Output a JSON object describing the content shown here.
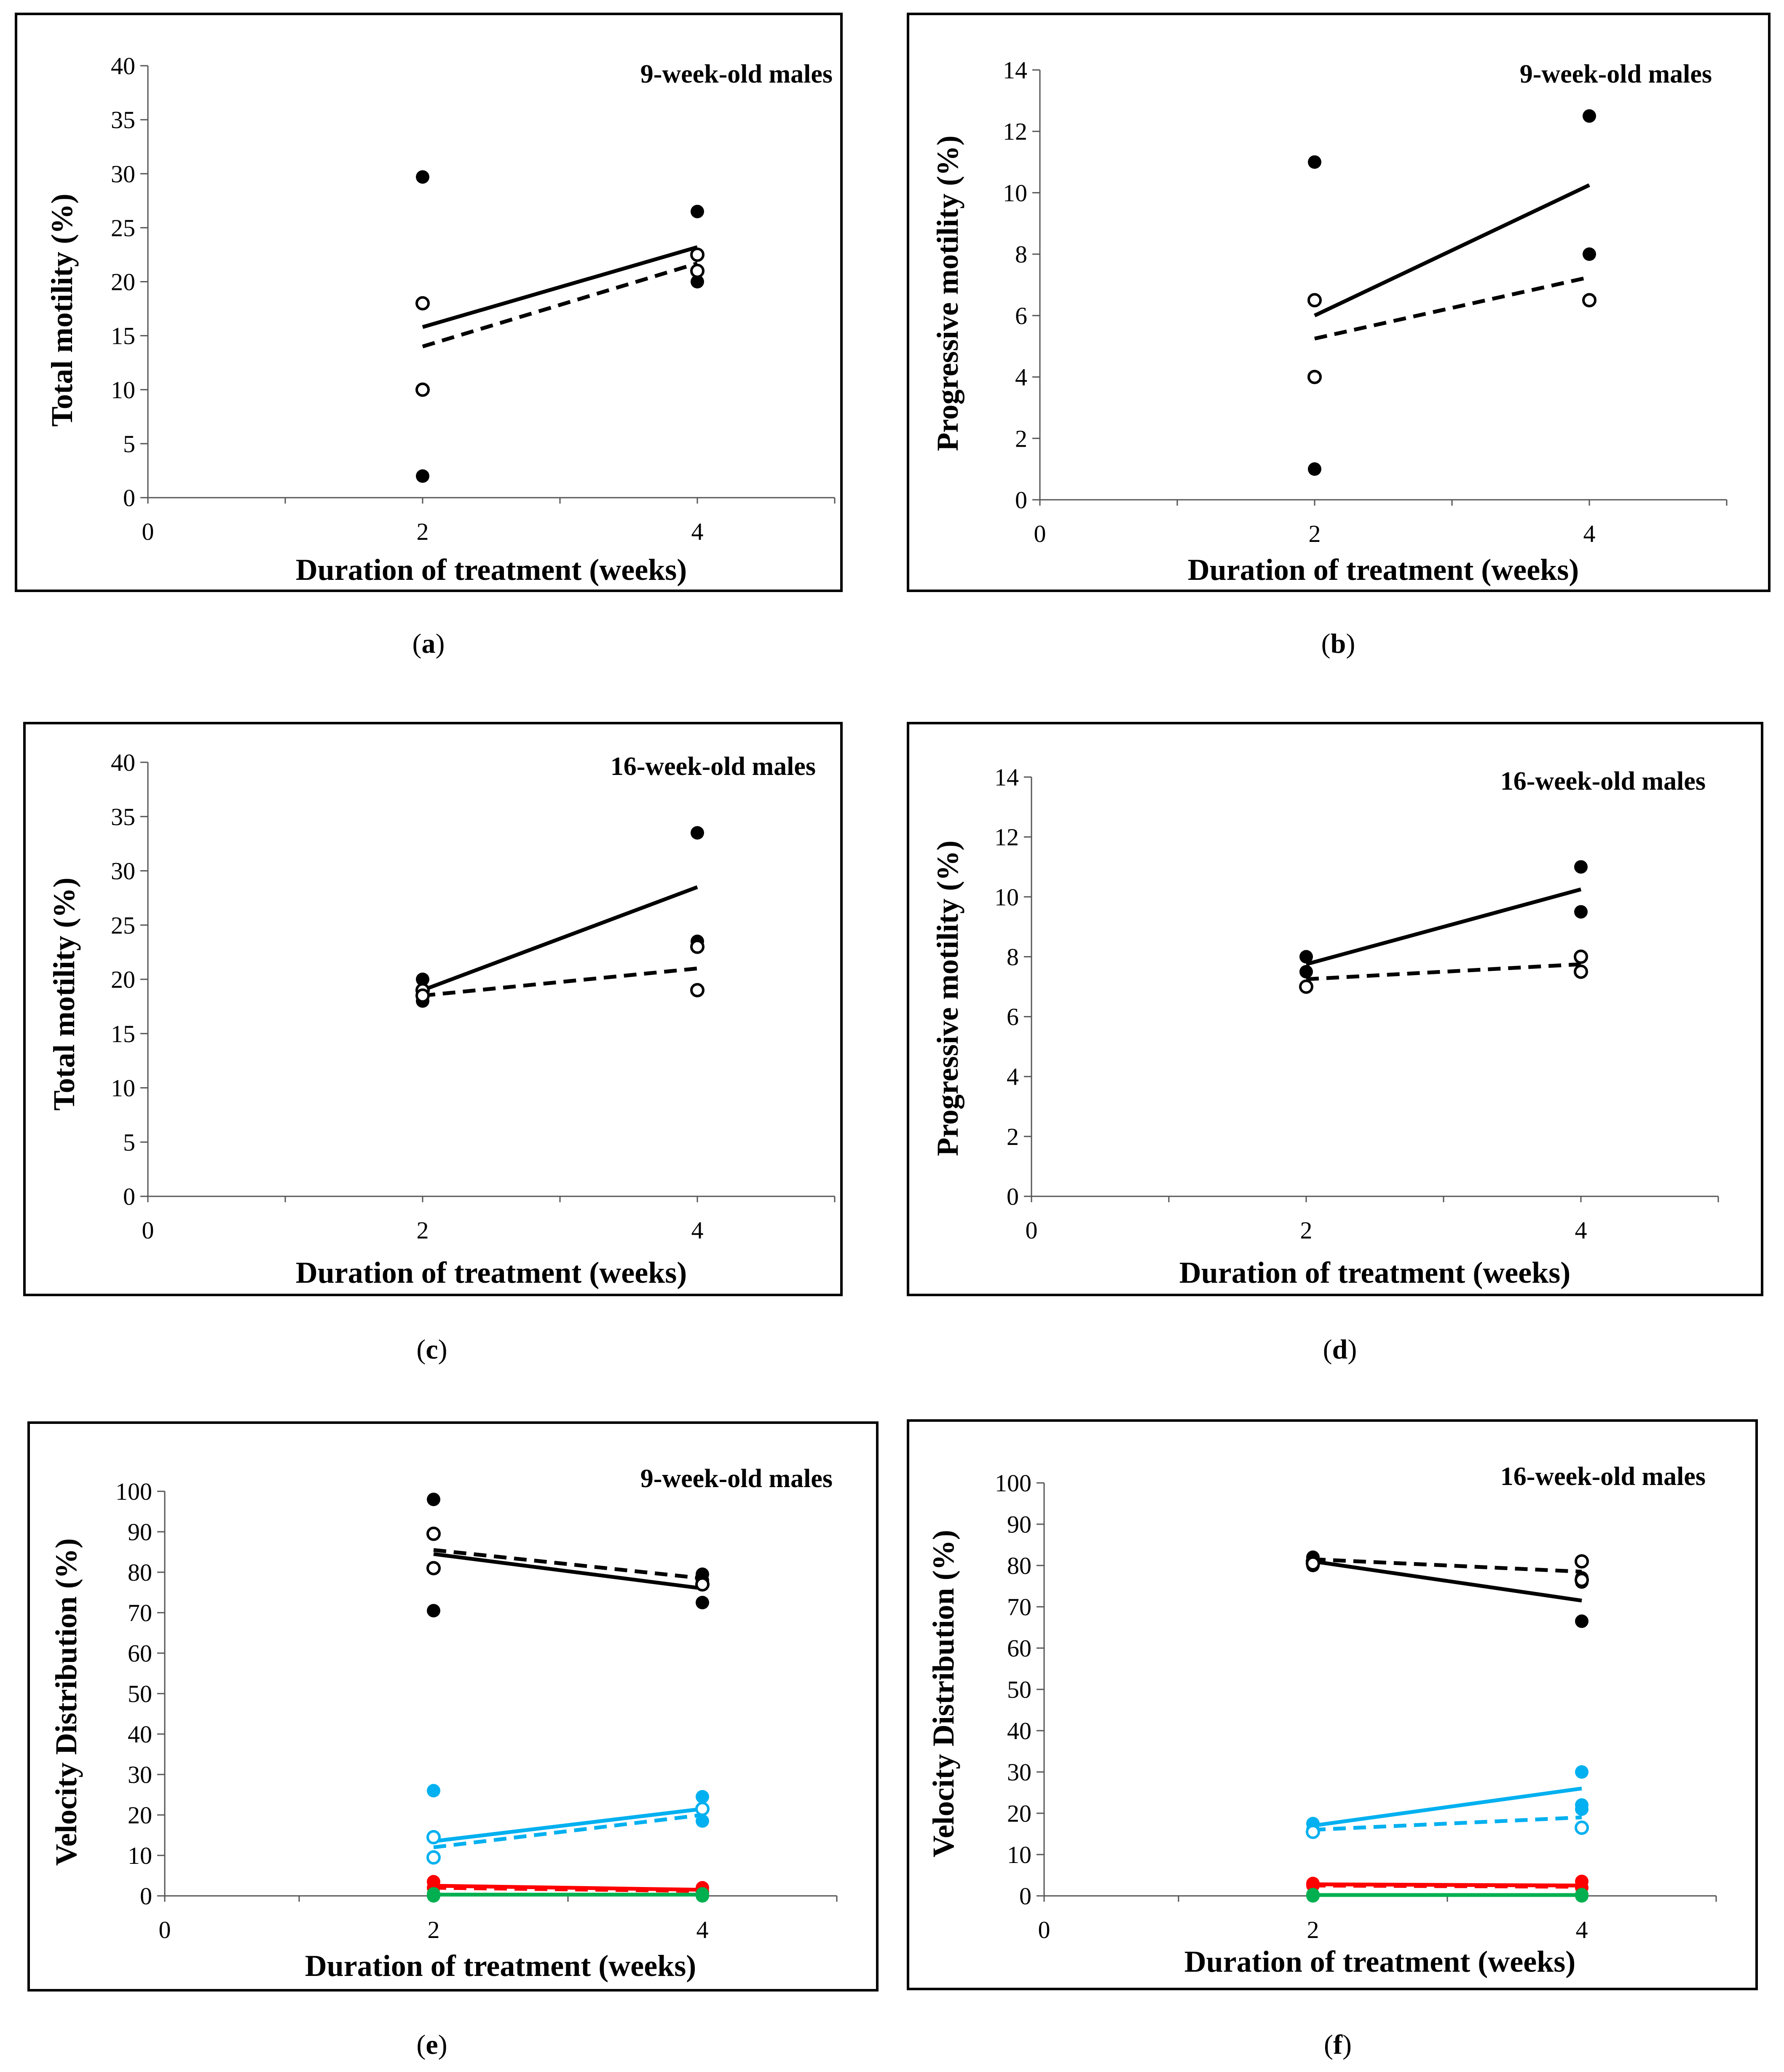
{
  "chart_data": [
    {
      "id": "a",
      "type": "scatter",
      "title": "9-week-old males",
      "xlabel": "Duration of treatment (weeks)",
      "ylabel": "Total motility (%)",
      "xlim": [
        0,
        5
      ],
      "xticks": [
        0,
        2,
        4
      ],
      "ylim": [
        0,
        40
      ],
      "yticks": [
        0,
        5,
        10,
        15,
        20,
        25,
        30,
        35,
        40
      ],
      "series": [
        {
          "name": "filled",
          "color": "#000000",
          "filled": true,
          "x": [
            2,
            2,
            4,
            4
          ],
          "y": [
            29.7,
            2,
            26.5,
            20
          ]
        },
        {
          "name": "open",
          "color": "#000000",
          "filled": false,
          "x": [
            2,
            2,
            4,
            4
          ],
          "y": [
            18,
            10,
            22.5,
            21
          ]
        }
      ],
      "lines": [
        {
          "name": "filled-mean",
          "color": "#000000",
          "dashed": false,
          "x": [
            2,
            4
          ],
          "y": [
            15.8,
            23.2
          ]
        },
        {
          "name": "open-mean",
          "color": "#000000",
          "dashed": true,
          "x": [
            2,
            4
          ],
          "y": [
            14,
            21.7
          ]
        }
      ],
      "caption_label": "a"
    },
    {
      "id": "b",
      "type": "scatter",
      "title": "9-week-old males",
      "xlabel": "Duration of treatment (weeks)",
      "ylabel": "Progressive motility (%)",
      "xlim": [
        0,
        5
      ],
      "xticks": [
        0,
        2,
        4
      ],
      "ylim": [
        0,
        14
      ],
      "yticks": [
        0,
        2,
        4,
        6,
        8,
        10,
        12,
        14
      ],
      "series": [
        {
          "name": "filled",
          "color": "#000000",
          "filled": true,
          "x": [
            2,
            2,
            4,
            4
          ],
          "y": [
            11,
            1,
            12.5,
            8
          ]
        },
        {
          "name": "open",
          "color": "#000000",
          "filled": false,
          "x": [
            2,
            2,
            4
          ],
          "y": [
            6.5,
            4,
            6.5
          ]
        }
      ],
      "lines": [
        {
          "name": "filled-mean",
          "color": "#000000",
          "dashed": false,
          "x": [
            2,
            4
          ],
          "y": [
            6,
            10.25
          ]
        },
        {
          "name": "open-mean",
          "color": "#000000",
          "dashed": true,
          "x": [
            2,
            4
          ],
          "y": [
            5.25,
            7.25
          ]
        }
      ],
      "caption_label": "b"
    },
    {
      "id": "c",
      "type": "scatter",
      "title": "16-week-old males",
      "xlabel": "Duration of treatment (weeks)",
      "ylabel": "Total motility (%)",
      "xlim": [
        0,
        5
      ],
      "xticks": [
        0,
        2,
        4
      ],
      "ylim": [
        0,
        40
      ],
      "yticks": [
        0,
        5,
        10,
        15,
        20,
        25,
        30,
        35,
        40
      ],
      "series": [
        {
          "name": "filled",
          "color": "#000000",
          "filled": true,
          "x": [
            2,
            2,
            4,
            4
          ],
          "y": [
            20,
            18,
            33.5,
            23.5
          ]
        },
        {
          "name": "open",
          "color": "#000000",
          "filled": false,
          "x": [
            2,
            2,
            4,
            4
          ],
          "y": [
            19,
            18.5,
            23,
            19
          ]
        }
      ],
      "lines": [
        {
          "name": "filled-mean",
          "color": "#000000",
          "dashed": false,
          "x": [
            2,
            4
          ],
          "y": [
            19,
            28.5
          ]
        },
        {
          "name": "open-mean",
          "color": "#000000",
          "dashed": true,
          "x": [
            2,
            4
          ],
          "y": [
            18.5,
            21
          ]
        }
      ],
      "caption_label": "c"
    },
    {
      "id": "d",
      "type": "scatter",
      "title": "16-week-old males",
      "xlabel": "Duration of treatment (weeks)",
      "ylabel": "Progressive motility (%)",
      "xlim": [
        0,
        5
      ],
      "xticks": [
        0,
        2,
        4
      ],
      "ylim": [
        0,
        14
      ],
      "yticks": [
        0,
        2,
        4,
        6,
        8,
        10,
        12,
        14
      ],
      "series": [
        {
          "name": "filled",
          "color": "#000000",
          "filled": true,
          "x": [
            2,
            2,
            4,
            4
          ],
          "y": [
            8,
            7.5,
            11,
            9.5
          ]
        },
        {
          "name": "open",
          "color": "#000000",
          "filled": false,
          "x": [
            2,
            4,
            4
          ],
          "y": [
            7,
            8,
            7.5
          ]
        }
      ],
      "lines": [
        {
          "name": "filled-mean",
          "color": "#000000",
          "dashed": false,
          "x": [
            2,
            4
          ],
          "y": [
            7.75,
            10.25
          ]
        },
        {
          "name": "open-mean",
          "color": "#000000",
          "dashed": true,
          "x": [
            2,
            4
          ],
          "y": [
            7.25,
            7.75
          ]
        }
      ],
      "caption_label": "d"
    },
    {
      "id": "e",
      "type": "scatter",
      "title": "9-week-old males",
      "xlabel": "Duration of treatment (weeks)",
      "ylabel": "Velocity Distribution (%)",
      "xlim": [
        0,
        5
      ],
      "xticks": [
        0,
        2,
        4
      ],
      "ylim": [
        0,
        100
      ],
      "yticks": [
        0,
        10,
        20,
        30,
        40,
        50,
        60,
        70,
        80,
        90,
        100
      ],
      "series": [
        {
          "name": "black-filled",
          "color": "#000000",
          "filled": true,
          "x": [
            2,
            2,
            4,
            4,
            4
          ],
          "y": [
            98,
            70.5,
            79.5,
            78,
            72.5
          ]
        },
        {
          "name": "black-open",
          "color": "#000000",
          "filled": false,
          "x": [
            2,
            2,
            4
          ],
          "y": [
            89.5,
            81,
            77
          ]
        },
        {
          "name": "blue-filled",
          "color": "#00b0f0",
          "filled": true,
          "x": [
            2,
            4,
            4
          ],
          "y": [
            26,
            24.5,
            18.5
          ]
        },
        {
          "name": "blue-open",
          "color": "#00b0f0",
          "filled": false,
          "x": [
            2,
            2,
            4
          ],
          "y": [
            14.5,
            9.5,
            21.5
          ]
        },
        {
          "name": "red-filled",
          "color": "#ff0000",
          "filled": true,
          "x": [
            2,
            2,
            4,
            4
          ],
          "y": [
            3.5,
            2,
            2,
            1
          ]
        },
        {
          "name": "green-filled",
          "color": "#00b050",
          "filled": true,
          "x": [
            2,
            2,
            4,
            4
          ],
          "y": [
            0.5,
            0,
            0.5,
            0
          ]
        }
      ],
      "lines": [
        {
          "name": "black-solid",
          "color": "#000000",
          "dashed": false,
          "x": [
            2,
            4
          ],
          "y": [
            84.5,
            76
          ]
        },
        {
          "name": "black-dashed",
          "color": "#000000",
          "dashed": true,
          "x": [
            2,
            4
          ],
          "y": [
            85.5,
            78.5
          ]
        },
        {
          "name": "blue-solid",
          "color": "#00b0f0",
          "dashed": false,
          "x": [
            2,
            4
          ],
          "y": [
            13.5,
            21.5
          ]
        },
        {
          "name": "blue-dashed",
          "color": "#00b0f0",
          "dashed": true,
          "x": [
            2,
            4
          ],
          "y": [
            12,
            20
          ]
        },
        {
          "name": "red-solid",
          "color": "#ff0000",
          "dashed": false,
          "x": [
            2,
            4
          ],
          "y": [
            2.5,
            1.5
          ]
        },
        {
          "name": "red-dashed",
          "color": "#ff0000",
          "dashed": true,
          "x": [
            2,
            4
          ],
          "y": [
            2,
            1.2
          ]
        },
        {
          "name": "green-solid",
          "color": "#00b050",
          "dashed": false,
          "x": [
            2,
            4
          ],
          "y": [
            0.3,
            0.3
          ]
        }
      ],
      "caption_label": "e"
    },
    {
      "id": "f",
      "type": "scatter",
      "title": "16-week-old males",
      "xlabel": "Duration of treatment (weeks)",
      "ylabel": "Velocity Distribution (%)",
      "xlim": [
        0,
        5
      ],
      "xticks": [
        0,
        2,
        4
      ],
      "ylim": [
        0,
        100
      ],
      "yticks": [
        0,
        10,
        20,
        30,
        40,
        50,
        60,
        70,
        80,
        90,
        100
      ],
      "series": [
        {
          "name": "black-filled",
          "color": "#000000",
          "filled": true,
          "x": [
            2,
            2,
            4,
            4,
            4
          ],
          "y": [
            82,
            80,
            77,
            76,
            66.5
          ]
        },
        {
          "name": "black-open",
          "color": "#000000",
          "filled": false,
          "x": [
            2,
            2,
            4,
            4
          ],
          "y": [
            81,
            80.5,
            81,
            76.5
          ]
        },
        {
          "name": "blue-filled",
          "color": "#00b0f0",
          "filled": true,
          "x": [
            2,
            2,
            4,
            4,
            4
          ],
          "y": [
            17.5,
            16,
            30,
            22,
            21
          ]
        },
        {
          "name": "blue-open",
          "color": "#00b0f0",
          "filled": false,
          "x": [
            2,
            4
          ],
          "y": [
            15.5,
            16.5
          ]
        },
        {
          "name": "red-filled",
          "color": "#ff0000",
          "filled": true,
          "x": [
            2,
            2,
            4,
            4
          ],
          "y": [
            3,
            2.5,
            3.5,
            2
          ]
        },
        {
          "name": "green-filled",
          "color": "#00b050",
          "filled": true,
          "x": [
            2,
            2,
            4,
            4
          ],
          "y": [
            0.3,
            0,
            0.3,
            0
          ]
        }
      ],
      "lines": [
        {
          "name": "black-solid",
          "color": "#000000",
          "dashed": false,
          "x": [
            2,
            4
          ],
          "y": [
            81,
            71.5
          ]
        },
        {
          "name": "black-dashed",
          "color": "#000000",
          "dashed": true,
          "x": [
            2,
            4
          ],
          "y": [
            81.5,
            78.5
          ]
        },
        {
          "name": "blue-solid",
          "color": "#00b0f0",
          "dashed": false,
          "x": [
            2,
            4
          ],
          "y": [
            17,
            26
          ]
        },
        {
          "name": "blue-dashed",
          "color": "#00b0f0",
          "dashed": true,
          "x": [
            2,
            4
          ],
          "y": [
            16,
            19
          ]
        },
        {
          "name": "red-solid",
          "color": "#ff0000",
          "dashed": false,
          "x": [
            2,
            4
          ],
          "y": [
            2.8,
            2.5
          ]
        },
        {
          "name": "red-dashed",
          "color": "#ff0000",
          "dashed": true,
          "x": [
            2,
            4
          ],
          "y": [
            2.5,
            2.2
          ]
        },
        {
          "name": "green-solid",
          "color": "#00b050",
          "dashed": false,
          "x": [
            2,
            4
          ],
          "y": [
            0.2,
            0.2
          ]
        }
      ],
      "caption_label": "f"
    }
  ]
}
